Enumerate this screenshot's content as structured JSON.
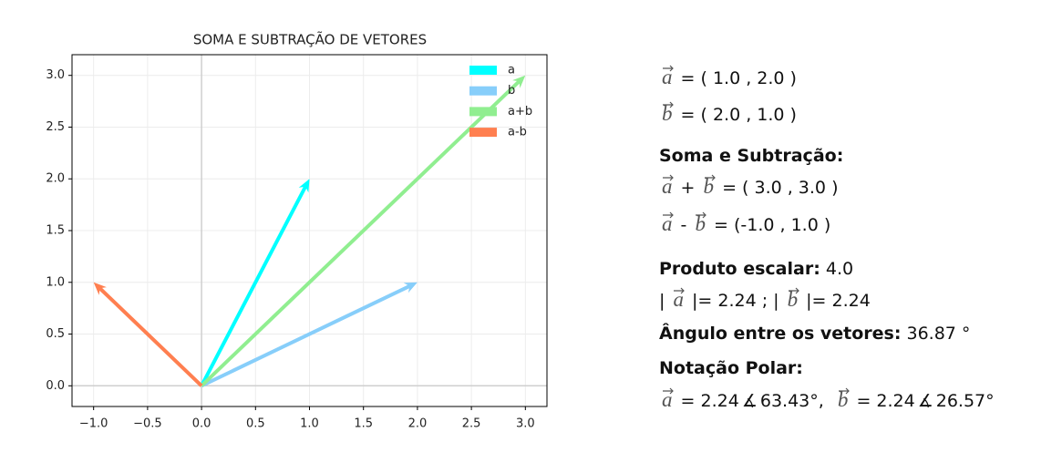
{
  "chart_data": {
    "type": "quiver",
    "title": "SOMA E SUBTRAÇÃO DE VETORES",
    "series": [
      {
        "name": "a",
        "color": "#00ffff",
        "x": [
          1
        ],
        "values": [
          2
        ]
      },
      {
        "name": "b",
        "color": "#87cefa",
        "x": [
          2
        ],
        "values": [
          1
        ]
      },
      {
        "name": "a+b",
        "color": "#90ee90",
        "x": [
          3
        ],
        "values": [
          3
        ]
      },
      {
        "name": "a-b",
        "color": "#ff7f50",
        "x": [
          -1
        ],
        "values": [
          1
        ]
      }
    ],
    "xlim": [
      -1.2,
      3.2
    ],
    "ylim": [
      -0.2,
      3.2
    ],
    "xticks": [
      {
        "value": -1,
        "label": "−1.0"
      },
      {
        "value": -0.5,
        "label": "−0.5"
      },
      {
        "value": 0,
        "label": "0.0"
      },
      {
        "value": 0.5,
        "label": "0.5"
      },
      {
        "value": 1,
        "label": "1.0"
      },
      {
        "value": 1.5,
        "label": "1.5"
      },
      {
        "value": 2,
        "label": "2.0"
      },
      {
        "value": 2.5,
        "label": "2.5"
      },
      {
        "value": 3,
        "label": "3.0"
      }
    ],
    "yticks": [
      {
        "value": 0,
        "label": "0.0"
      },
      {
        "value": 0.5,
        "label": "0.5"
      },
      {
        "value": 1,
        "label": "1.0"
      },
      {
        "value": 1.5,
        "label": "1.5"
      },
      {
        "value": 2,
        "label": "2.0"
      },
      {
        "value": 2.5,
        "label": "2.5"
      },
      {
        "value": 3,
        "label": "3.0"
      }
    ],
    "grid": true,
    "legend": "upper right"
  },
  "panel": {
    "vec_a": "a",
    "vec_b": "b",
    "a_def": "= ( 1.0 , 2.0 )",
    "b_def": "= ( 2.0 , 1.0 )",
    "sum_heading": "Soma e Subtração:",
    "plus": "+",
    "sum": "= ( 3.0 , 3.0 )",
    "minus": "-",
    "diff": "= (-1.0 , 1.0 )",
    "dot_label": "Produto escalar:",
    "dot_value": "4.0",
    "bar_open": "|",
    "norm_a": "|= 2.24 ;",
    "norm_b": "|= 2.24",
    "angle_label": "Ângulo entre os vetores:",
    "angle_value": "36.87 °",
    "polar_heading": "Notação Polar:",
    "polar_a": "= 2.24",
    "angle_sym": "∡",
    "polar_a_angle": "63.43°,",
    "polar_b": "= 2.24",
    "polar_b_angle": "26.57°"
  }
}
